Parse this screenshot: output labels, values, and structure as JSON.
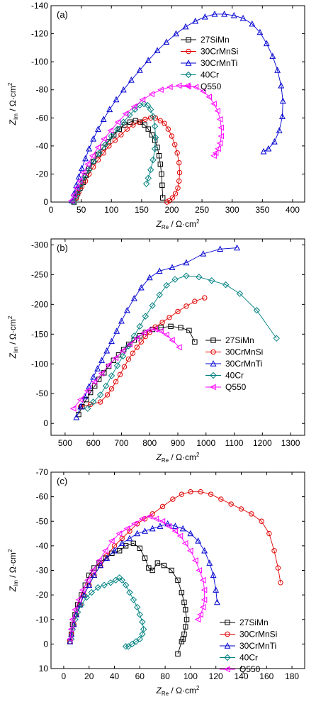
{
  "series_styles": [
    {
      "name": "27SiMn",
      "color": "#000000",
      "marker": "square"
    },
    {
      "name": "30CrMnSi",
      "color": "#e00000",
      "marker": "circle"
    },
    {
      "name": "30CrMnTi",
      "color": "#0000d0",
      "marker": "triangle-up"
    },
    {
      "name": "40Cr",
      "color": "#008080",
      "marker": "diamond"
    },
    {
      "name": "Q550",
      "color": "#ff00ff",
      "marker": "triangle-left"
    }
  ],
  "chart_data": [
    {
      "type": "scatter",
      "panel_label": "(a)",
      "xlabel_main": "Z",
      "xlabel_sub": "Re",
      "xlabel_unit": " / Ω·cm",
      "xlabel_sup": "2",
      "ylabel_main": "Z",
      "ylabel_sub": "Im",
      "ylabel_unit": " / Ω·cm",
      "ylabel_sup": "2",
      "xlim": [
        0,
        420
      ],
      "ylim": [
        0,
        -140
      ],
      "xticks": [
        0,
        50,
        100,
        150,
        200,
        250,
        300,
        350,
        400
      ],
      "yticks": [
        0,
        -20,
        -40,
        -60,
        -80,
        -100,
        -120,
        -140
      ],
      "legend": [
        "27SiMn",
        "30CrMnSi",
        "30CrMnTi",
        "40Cr",
        "Q550"
      ],
      "legend_position": "top-right",
      "series": [
        {
          "name": "27SiMn",
          "x": [
            38,
            41,
            44,
            48,
            53,
            58,
            63,
            70,
            78,
            86,
            95,
            104,
            113,
            122,
            131,
            140,
            148,
            155,
            161,
            167,
            172,
            176,
            179,
            181,
            183,
            184,
            185
          ],
          "y": [
            0,
            -3,
            -6,
            -10,
            -14,
            -19,
            -24,
            -29,
            -34,
            -39,
            -43,
            -48,
            -52,
            -55,
            -57,
            -58,
            -57,
            -55,
            -52,
            -48,
            -44,
            -39,
            -33,
            -27,
            -20,
            -12,
            -3
          ]
        },
        {
          "name": "30CrMnSi",
          "x": [
            38,
            42,
            46,
            51,
            57,
            63,
            70,
            78,
            87,
            96,
            106,
            116,
            126,
            136,
            146,
            156,
            165,
            173,
            181,
            188,
            194,
            200,
            205,
            209,
            212,
            213,
            212,
            210,
            206,
            201,
            196,
            192
          ],
          "y": [
            0,
            -3,
            -7,
            -11,
            -15,
            -20,
            -25,
            -30,
            -35,
            -40,
            -44,
            -48,
            -52,
            -55,
            -57,
            -59,
            -60,
            -60,
            -58,
            -56,
            -52,
            -47,
            -41,
            -35,
            -28,
            -21,
            -15,
            -10,
            -6,
            -3,
            -1,
            0
          ]
        },
        {
          "name": "30CrMnTi",
          "x": [
            35,
            38,
            42,
            46,
            51,
            57,
            63,
            70,
            78,
            87,
            97,
            108,
            120,
            133,
            147,
            161,
            176,
            191,
            207,
            223,
            239,
            255,
            271,
            287,
            303,
            318,
            333,
            346,
            357,
            367,
            375,
            381,
            384,
            383,
            378,
            370,
            360,
            352
          ],
          "y": [
            -1,
            -6,
            -12,
            -18,
            -24,
            -31,
            -38,
            -45,
            -52,
            -59,
            -66,
            -73,
            -80,
            -87,
            -94,
            -101,
            -108,
            -114,
            -120,
            -125,
            -129,
            -132,
            -134,
            -134,
            -133,
            -131,
            -127,
            -121,
            -113,
            -104,
            -94,
            -83,
            -72,
            -61,
            -51,
            -43,
            -38,
            -36
          ]
        },
        {
          "name": "40Cr",
          "x": [
            38,
            41,
            45,
            50,
            56,
            63,
            71,
            80,
            90,
            100,
            110,
            120,
            130,
            139,
            147,
            154,
            160,
            165,
            169,
            172,
            173,
            172,
            169,
            165,
            161,
            158
          ],
          "y": [
            0,
            -4,
            -8,
            -13,
            -18,
            -23,
            -29,
            -35,
            -41,
            -47,
            -52,
            -57,
            -62,
            -66,
            -69,
            -70,
            -69,
            -66,
            -61,
            -54,
            -46,
            -38,
            -30,
            -23,
            -17,
            -13
          ]
        },
        {
          "name": "Q550",
          "x": [
            34,
            38,
            43,
            48,
            54,
            61,
            69,
            78,
            88,
            99,
            111,
            124,
            138,
            152,
            167,
            182,
            197,
            212,
            226,
            240,
            252,
            262,
            270,
            276,
            280,
            282,
            282,
            280,
            277,
            273,
            270
          ],
          "y": [
            -1,
            -5,
            -10,
            -15,
            -21,
            -27,
            -33,
            -39,
            -45,
            -51,
            -57,
            -63,
            -68,
            -73,
            -77,
            -80,
            -82,
            -83,
            -83,
            -82,
            -79,
            -75,
            -70,
            -65,
            -59,
            -53,
            -47,
            -42,
            -38,
            -35,
            -33
          ]
        }
      ]
    },
    {
      "type": "scatter",
      "panel_label": "(b)",
      "xlabel_main": "Z",
      "xlabel_sub": "Re",
      "xlabel_unit": " / Ω·cm",
      "xlabel_sup": "2",
      "ylabel_main": "Z",
      "ylabel_sub": "Im",
      "ylabel_unit": " / Ω·cm",
      "ylabel_sup": "2",
      "xlim": [
        450,
        1350
      ],
      "ylim": [
        20,
        -310
      ],
      "xticks": [
        500,
        600,
        700,
        800,
        900,
        1000,
        1100,
        1200,
        1300
      ],
      "yticks": [
        0,
        -50,
        -100,
        -150,
        -200,
        -250,
        -300
      ],
      "legend": [
        "27SiMn",
        "30CrMnSi",
        "30CrMnTi",
        "40Cr",
        "Q550"
      ],
      "legend_position": "right",
      "series": [
        {
          "name": "27SiMn",
          "x": [
            548,
            560,
            575,
            590,
            605,
            620,
            638,
            655,
            672,
            690,
            708,
            726,
            745,
            765,
            785,
            810,
            840,
            875,
            910,
            940,
            960
          ],
          "y": [
            -15,
            -28,
            -40,
            -52,
            -63,
            -74,
            -85,
            -96,
            -106,
            -115,
            -124,
            -133,
            -140,
            -147,
            -153,
            -158,
            -161,
            -163,
            -161,
            -156,
            -137
          ]
        },
        {
          "name": "30CrMnSi",
          "x": [
            555,
            590,
            625,
            650,
            665,
            680,
            695,
            710,
            725,
            740,
            755,
            770,
            785,
            800,
            820,
            845,
            870,
            900,
            930,
            960,
            995
          ],
          "y": [
            -28,
            -32,
            -36,
            -48,
            -58,
            -70,
            -82,
            -95,
            -108,
            -118,
            -128,
            -137,
            -146,
            -153,
            -162,
            -170,
            -178,
            -188,
            -197,
            -205,
            -211
          ]
        },
        {
          "name": "30CrMnTi",
          "x": [
            540,
            555,
            570,
            585,
            600,
            615,
            630,
            648,
            665,
            683,
            700,
            720,
            745,
            770,
            800,
            835,
            880,
            930,
            990,
            1050,
            1110
          ],
          "y": [
            -10,
            -28,
            -45,
            -62,
            -78,
            -92,
            -106,
            -122,
            -138,
            -155,
            -172,
            -190,
            -210,
            -228,
            -245,
            -256,
            -262,
            -270,
            -285,
            -293,
            -295
          ]
        },
        {
          "name": "40Cr",
          "x": [
            580,
            600,
            625,
            645,
            665,
            685,
            705,
            725,
            745,
            765,
            785,
            810,
            835,
            860,
            890,
            930,
            975,
            1020,
            1070,
            1120,
            1180,
            1250
          ],
          "y": [
            -25,
            -36,
            -48,
            -63,
            -80,
            -97,
            -113,
            -130,
            -147,
            -163,
            -180,
            -198,
            -216,
            -232,
            -242,
            -248,
            -246,
            -240,
            -233,
            -218,
            -190,
            -143
          ]
        },
        {
          "name": "Q550",
          "x": [
            530,
            555,
            580,
            605,
            630,
            655,
            680,
            705,
            730,
            755,
            780,
            800,
            820,
            840,
            860,
            880,
            905
          ],
          "y": [
            -25,
            -40,
            -55,
            -70,
            -84,
            -98,
            -110,
            -122,
            -133,
            -143,
            -152,
            -157,
            -158,
            -155,
            -149,
            -140,
            -128
          ]
        }
      ]
    },
    {
      "type": "scatter",
      "panel_label": "(c)",
      "xlabel_main": "Z",
      "xlabel_sub": "Re",
      "xlabel_unit": " / Ω·cm",
      "xlabel_sup": "2",
      "ylabel_main": "Z",
      "ylabel_sub": "Im",
      "ylabel_unit": " / Ω·cm",
      "ylabel_sup": "2",
      "xlim": [
        -10,
        190
      ],
      "ylim": [
        10,
        -70
      ],
      "xticks": [
        0,
        20,
        40,
        60,
        80,
        100,
        120,
        140,
        160,
        180
      ],
      "yticks": [
        10,
        0,
        -10,
        -20,
        -30,
        -40,
        -50,
        -60,
        -70
      ],
      "legend": [
        "27SiMn",
        "30CrMnSi",
        "30CrMnTi",
        "40Cr",
        "Q550"
      ],
      "legend_position": "bottom-right",
      "series": [
        {
          "name": "27SiMn",
          "x": [
            5,
            6,
            7,
            9,
            11,
            14,
            17,
            20,
            24,
            28,
            33,
            38,
            44,
            49,
            55,
            60,
            64,
            67,
            70,
            74,
            79,
            85,
            90,
            93,
            95,
            96,
            97,
            96,
            95,
            94,
            93,
            90
          ],
          "y": [
            -1,
            -4,
            -8,
            -12,
            -16,
            -20,
            -24,
            -28,
            -31,
            -33,
            -35,
            -37,
            -38,
            -40,
            -41,
            -39,
            -35,
            -31,
            -30,
            -33,
            -32,
            -30,
            -26,
            -21,
            -17,
            -14,
            -10,
            -7,
            -4,
            -2,
            -1,
            4
          ]
        },
        {
          "name": "30CrMnSi",
          "x": [
            5,
            6,
            8,
            10,
            13,
            16,
            20,
            24,
            29,
            34,
            40,
            46,
            52,
            58,
            64,
            70,
            78,
            86,
            93,
            100,
            108,
            116,
            124,
            132,
            140,
            148,
            156,
            162,
            166,
            169,
            171
          ],
          "y": [
            -1,
            -4,
            -8,
            -12,
            -16,
            -20,
            -24,
            -28,
            -32,
            -36,
            -40,
            -43,
            -46,
            -49,
            -51,
            -53,
            -56,
            -59,
            -61,
            -62,
            -62,
            -61,
            -59,
            -57,
            -55,
            -53,
            -50,
            -45,
            -38,
            -31,
            -25
          ]
        },
        {
          "name": "30CrMnTi",
          "x": [
            5,
            6,
            8,
            10,
            13,
            16,
            20,
            24,
            29,
            34,
            40,
            46,
            52,
            58,
            64,
            70,
            76,
            82,
            88,
            94,
            100,
            106,
            111,
            115,
            118,
            120,
            121
          ],
          "y": [
            -1,
            -4,
            -8,
            -12,
            -16,
            -20,
            -24,
            -28,
            -32,
            -35,
            -38,
            -41,
            -43,
            -45,
            -46,
            -47,
            -48,
            -49,
            -48,
            -47,
            -45,
            -42,
            -38,
            -33,
            -28,
            -22,
            -17
          ]
        },
        {
          "name": "40Cr",
          "x": [
            6,
            7,
            9,
            11,
            14,
            18,
            22,
            27,
            32,
            37,
            41,
            44,
            46,
            49,
            52,
            55,
            58,
            60,
            62,
            63,
            62,
            60,
            57,
            54,
            51,
            49
          ],
          "y": [
            -2,
            -6,
            -10,
            -13,
            -16,
            -19,
            -21,
            -23,
            -24,
            -25,
            -26,
            -27,
            -26,
            -24,
            -21,
            -18,
            -15,
            -12,
            -9,
            -6,
            -4,
            -2,
            -1,
            0,
            1,
            1
          ]
        },
        {
          "name": "Q550",
          "x": [
            5,
            6,
            7,
            9,
            12,
            15,
            19,
            23,
            28,
            33,
            38,
            44,
            50,
            56,
            62,
            68,
            73,
            78,
            83,
            88,
            92,
            96,
            100,
            104,
            107,
            110,
            111,
            111,
            110,
            108,
            106
          ],
          "y": [
            -2,
            -6,
            -10,
            -14,
            -18,
            -22,
            -26,
            -30,
            -34,
            -38,
            -42,
            -45,
            -47,
            -49,
            -51,
            -52,
            -51,
            -50,
            -48,
            -46,
            -44,
            -41,
            -38,
            -34,
            -30,
            -26,
            -22,
            -18,
            -15,
            -12,
            -10
          ]
        }
      ]
    }
  ]
}
